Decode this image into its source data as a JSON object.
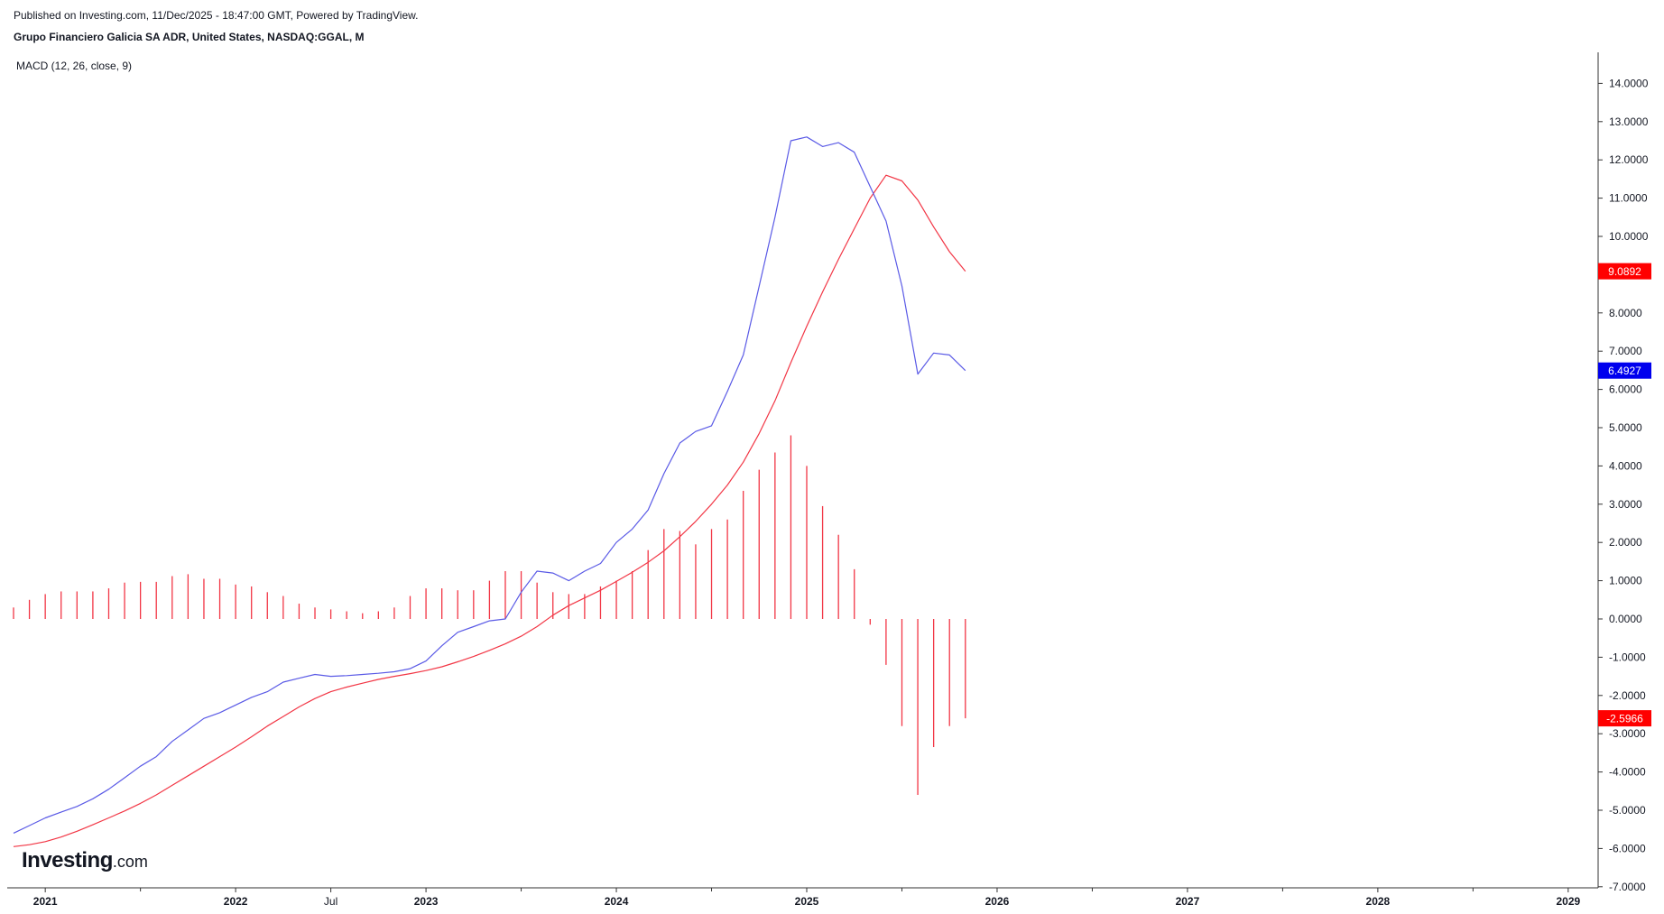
{
  "header": {
    "published": "Published on Investing.com, 11/Dec/2025 - 18:47:00 GMT, Powered by TradingView.",
    "title": "Grupo Financiero Galicia SA ADR, United States, NASDAQ:GGAL, M",
    "indicator": "MACD (12, 26, close, 9)"
  },
  "logo": {
    "main": "Investing",
    "suffix": ".com"
  },
  "colors": {
    "macd_line": "#5a5ae6",
    "signal_line": "#f23645",
    "histogram": "#f23645",
    "macd_badge": "#0000ee",
    "signal_badge": "#ff0000",
    "hist_badge": "#ff0000",
    "axis": "#333333"
  },
  "chart_data": {
    "type": "line",
    "x_start": "2020-11",
    "x_end": "2025-11",
    "y_range": [
      -7,
      14.5
    ],
    "y_ticks": [
      "14.0000",
      "13.0000",
      "12.0000",
      "11.0000",
      "10.0000",
      "8.0000",
      "7.0000",
      "6.0000",
      "5.0000",
      "4.0000",
      "3.0000",
      "2.0000",
      "1.0000",
      "0.0000",
      "-1.0000",
      "-2.0000",
      "-3.0000",
      "-4.0000",
      "-5.0000",
      "-6.0000",
      "-7.0000"
    ],
    "x_tick_labels": [
      {
        "label": "2021",
        "date": "2021-01"
      },
      {
        "label": "2022",
        "date": "2022-01"
      },
      {
        "label": "Jul",
        "date": "2022-07"
      },
      {
        "label": "2023",
        "date": "2023-01"
      },
      {
        "label": "2024",
        "date": "2024-01"
      },
      {
        "label": "2025",
        "date": "2025-01"
      },
      {
        "label": "2026",
        "date": "2026-01"
      },
      {
        "label": "2027",
        "date": "2027-01"
      },
      {
        "label": "2028",
        "date": "2028-01"
      },
      {
        "label": "2029",
        "date": "2029-01"
      }
    ],
    "x_minor_ticks": [
      "2021-07",
      "2023-07",
      "2024-07",
      "2025-07",
      "2026-07",
      "2027-07",
      "2028-07"
    ],
    "series": [
      {
        "values": [
          -5.6,
          -5.4,
          -5.2,
          -5.05,
          -4.9,
          -4.7,
          -4.45,
          -4.15,
          -3.85,
          -3.6,
          -3.2,
          -2.9,
          -2.6,
          -2.45,
          -2.25,
          -2.05,
          -1.9,
          -1.65,
          -1.55,
          -1.45,
          -1.5,
          -1.48,
          -1.45,
          -1.42,
          -1.38,
          -1.3,
          -1.1,
          -0.7,
          -0.35,
          -0.2,
          -0.05,
          0.0,
          0.7,
          1.25,
          1.2,
          1.0,
          1.25,
          1.45,
          2.0,
          2.35,
          2.85,
          3.8,
          4.6,
          4.9,
          5.05,
          5.95,
          6.9,
          8.7,
          10.5,
          12.5,
          12.6,
          12.35,
          12.45,
          12.2,
          11.3,
          10.4,
          8.7,
          6.4,
          6.95,
          6.9,
          6.4927
        ]
      },
      {
        "values": [
          -5.95,
          -5.9,
          -5.82,
          -5.7,
          -5.55,
          -5.38,
          -5.2,
          -5.02,
          -4.82,
          -4.6,
          -4.35,
          -4.1,
          -3.85,
          -3.6,
          -3.35,
          -3.08,
          -2.8,
          -2.55,
          -2.3,
          -2.08,
          -1.9,
          -1.78,
          -1.68,
          -1.58,
          -1.5,
          -1.43,
          -1.35,
          -1.25,
          -1.12,
          -0.98,
          -0.82,
          -0.65,
          -0.45,
          -0.2,
          0.1,
          0.35,
          0.55,
          0.75,
          0.98,
          1.22,
          1.48,
          1.78,
          2.15,
          2.55,
          3.0,
          3.5,
          4.1,
          4.85,
          5.7,
          6.7,
          7.65,
          8.55,
          9.4,
          10.2,
          11.0,
          11.6,
          11.45,
          10.95,
          10.25,
          9.6,
          9.0892
        ]
      },
      {
        "type": "bar",
        "values": [
          0.3,
          0.5,
          0.65,
          0.72,
          0.72,
          0.72,
          0.8,
          0.95,
          0.97,
          0.97,
          1.12,
          1.17,
          1.05,
          1.05,
          0.9,
          0.85,
          0.7,
          0.6,
          0.4,
          0.3,
          0.25,
          0.2,
          0.15,
          0.2,
          0.3,
          0.6,
          0.8,
          0.8,
          0.75,
          0.75,
          1.0,
          1.25,
          1.25,
          0.95,
          0.7,
          0.65,
          0.65,
          0.85,
          1.0,
          1.25,
          1.8,
          2.35,
          2.3,
          1.95,
          2.35,
          2.6,
          3.35,
          3.9,
          4.35,
          4.8,
          4.0,
          2.95,
          2.2,
          1.3,
          -0.15,
          -1.2,
          -2.8,
          -4.6,
          -3.35,
          -2.8,
          -2.5966
        ]
      }
    ],
    "last_values": {
      "signal": "9.0892",
      "macd": "6.4927",
      "histogram": "-2.5966"
    }
  }
}
